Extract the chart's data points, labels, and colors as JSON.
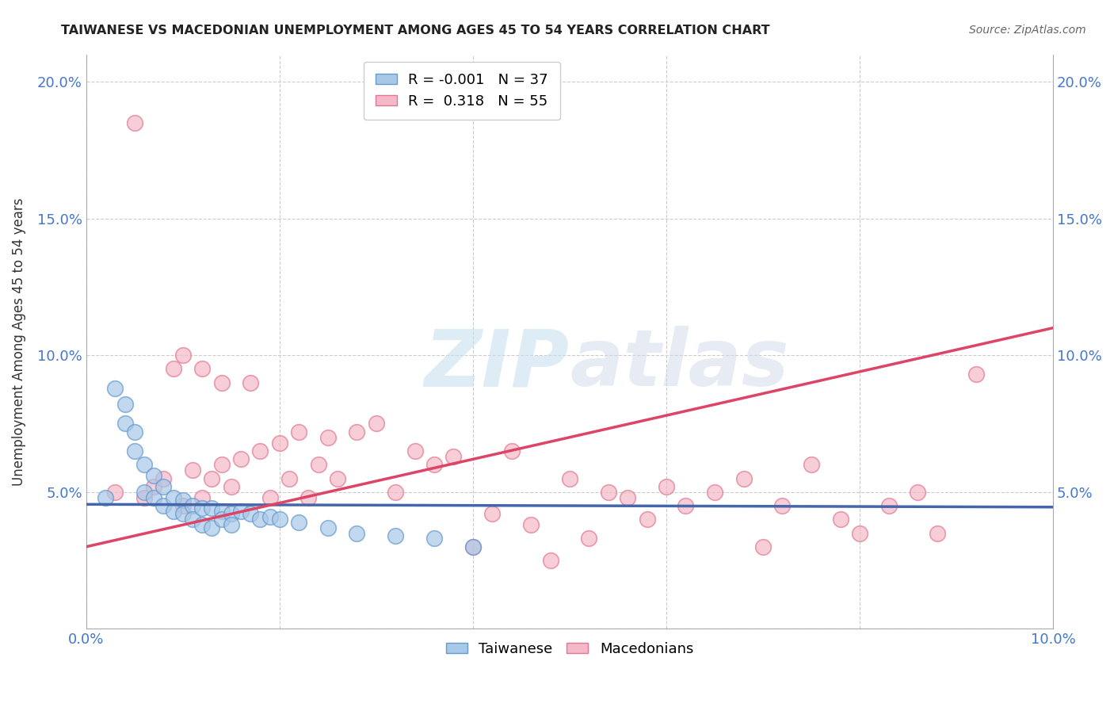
{
  "title": "TAIWANESE VS MACEDONIAN UNEMPLOYMENT AMONG AGES 45 TO 54 YEARS CORRELATION CHART",
  "source": "Source: ZipAtlas.com",
  "ylabel": "Unemployment Among Ages 45 to 54 years",
  "xlim": [
    0.0,
    0.1
  ],
  "ylim": [
    0.0,
    0.21
  ],
  "taiwanese_color": "#a8c8e8",
  "taiwanese_edge_color": "#6699cc",
  "macedonian_color": "#f4b8c8",
  "macedonian_edge_color": "#e07890",
  "taiwanese_line_color": "#4466aa",
  "macedonian_line_color": "#dd4466",
  "grid_color": "#cccccc",
  "tick_color": "#4477cc",
  "background_color": "#ffffff",
  "taiwanese_N": 37,
  "macedonian_N": 55,
  "tw_x": [
    0.002,
    0.003,
    0.004,
    0.004,
    0.005,
    0.005,
    0.006,
    0.006,
    0.007,
    0.007,
    0.008,
    0.008,
    0.009,
    0.009,
    0.01,
    0.01,
    0.011,
    0.011,
    0.012,
    0.012,
    0.013,
    0.013,
    0.014,
    0.014,
    0.015,
    0.015,
    0.016,
    0.017,
    0.018,
    0.019,
    0.02,
    0.022,
    0.025,
    0.028,
    0.032,
    0.036,
    0.04
  ],
  "tw_y": [
    0.048,
    0.088,
    0.082,
    0.075,
    0.072,
    0.065,
    0.06,
    0.05,
    0.056,
    0.048,
    0.052,
    0.045,
    0.048,
    0.043,
    0.047,
    0.042,
    0.045,
    0.04,
    0.044,
    0.038,
    0.044,
    0.037,
    0.043,
    0.04,
    0.042,
    0.038,
    0.043,
    0.042,
    0.04,
    0.041,
    0.04,
    0.039,
    0.037,
    0.035,
    0.034,
    0.033,
    0.03
  ],
  "mac_x": [
    0.003,
    0.005,
    0.006,
    0.007,
    0.008,
    0.009,
    0.01,
    0.01,
    0.011,
    0.012,
    0.012,
    0.013,
    0.014,
    0.014,
    0.015,
    0.016,
    0.017,
    0.018,
    0.019,
    0.02,
    0.021,
    0.022,
    0.023,
    0.024,
    0.025,
    0.026,
    0.028,
    0.03,
    0.032,
    0.034,
    0.036,
    0.038,
    0.04,
    0.042,
    0.044,
    0.046,
    0.048,
    0.05,
    0.052,
    0.054,
    0.056,
    0.058,
    0.06,
    0.062,
    0.065,
    0.068,
    0.07,
    0.072,
    0.075,
    0.078,
    0.08,
    0.083,
    0.086,
    0.088,
    0.092
  ],
  "mac_y": [
    0.05,
    0.185,
    0.048,
    0.052,
    0.055,
    0.095,
    0.1,
    0.045,
    0.058,
    0.048,
    0.095,
    0.055,
    0.06,
    0.09,
    0.052,
    0.062,
    0.09,
    0.065,
    0.048,
    0.068,
    0.055,
    0.072,
    0.048,
    0.06,
    0.07,
    0.055,
    0.072,
    0.075,
    0.05,
    0.065,
    0.06,
    0.063,
    0.03,
    0.042,
    0.065,
    0.038,
    0.025,
    0.055,
    0.033,
    0.05,
    0.048,
    0.04,
    0.052,
    0.045,
    0.05,
    0.055,
    0.03,
    0.045,
    0.06,
    0.04,
    0.035,
    0.045,
    0.05,
    0.035,
    0.093
  ],
  "tw_line_x": [
    0.0,
    0.1
  ],
  "tw_line_y": [
    0.0455,
    0.0445
  ],
  "mac_line_x": [
    0.0,
    0.1
  ],
  "mac_line_y": [
    0.03,
    0.11
  ]
}
